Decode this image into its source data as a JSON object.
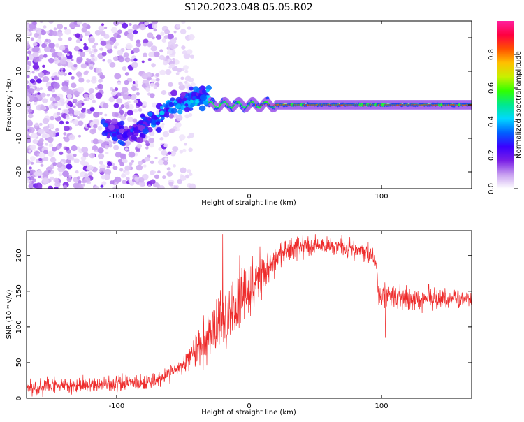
{
  "title": "S120.2023.048.05.05.R02",
  "chart_data": [
    {
      "type": "heatmap",
      "xlabel": "Height of straight line (km)",
      "ylabel": "Frequency (Hz)",
      "xlim": [
        -168,
        168
      ],
      "ylim": [
        -25,
        25
      ],
      "xticks": [
        -100,
        0,
        100
      ],
      "yticks": [
        -20,
        -10,
        0,
        10,
        20
      ],
      "colorbar": {
        "label": "Normalized spectral amplitude",
        "range": [
          0,
          1
        ],
        "ticks": [
          "0.0",
          "0.2",
          "0.4",
          "0.6",
          "0.8"
        ],
        "tick_values": [
          0,
          0.2,
          0.4,
          0.6,
          0.8
        ],
        "colormap": [
          "#ffffff",
          "#c8a0f0",
          "#7a1fe6",
          "#3a00ff",
          "#0060ff",
          "#00d8ff",
          "#00e890",
          "#30ff00",
          "#c8f000",
          "#ffc000",
          "#ff5000",
          "#ff0040",
          "#ff1f9f"
        ]
      },
      "features": {
        "noise_region_x": [
          -168,
          -50
        ],
        "diagonal_trend": [
          [
            -110,
            -6
          ],
          [
            -95,
            -9
          ],
          [
            -80,
            -6
          ],
          [
            -65,
            -3
          ],
          [
            -55,
            0
          ],
          [
            -45,
            1.5
          ],
          [
            -35,
            2.5
          ],
          [
            -30,
            3
          ]
        ],
        "steady_band": {
          "x": [
            -30,
            168
          ],
          "frequency": 0,
          "peak_amplitude": 0.9
        }
      }
    },
    {
      "type": "line",
      "xlabel": "Height of straight line (km)",
      "ylabel": "SNR (10 * v/v)",
      "xlim": [
        -168,
        168
      ],
      "ylim": [
        0,
        235
      ],
      "xticks": [
        -100,
        0,
        100
      ],
      "yticks": [
        0,
        50,
        100,
        150,
        200
      ],
      "color": "#ee2b2b",
      "series": [
        {
          "trend": [
            [
              -168,
              15
            ],
            [
              -150,
              17
            ],
            [
              -120,
              19
            ],
            [
              -90,
              20
            ],
            [
              -70,
              25
            ],
            [
              -55,
              38
            ],
            [
              -45,
              55
            ],
            [
              -35,
              80
            ],
            [
              -25,
              100
            ],
            [
              -15,
              120
            ],
            [
              -5,
              140
            ],
            [
              5,
              160
            ],
            [
              15,
              185
            ],
            [
              25,
              205
            ],
            [
              35,
              212
            ],
            [
              50,
              212
            ],
            [
              60,
              213
            ],
            [
              70,
              212
            ],
            [
              80,
              208
            ],
            [
              90,
              202
            ],
            [
              96,
              195
            ],
            [
              98,
              140
            ],
            [
              105,
              143
            ],
            [
              115,
              140
            ],
            [
              130,
              140
            ],
            [
              150,
              138
            ],
            [
              168,
              138
            ]
          ],
          "spread": [
            [
              -168,
              12
            ],
            [
              -50,
              12
            ],
            [
              -40,
              30
            ],
            [
              -25,
              45
            ],
            [
              -10,
              50
            ],
            [
              5,
              45
            ],
            [
              20,
              22
            ],
            [
              50,
              14
            ],
            [
              95,
              14
            ],
            [
              98,
              22
            ],
            [
              110,
              20
            ],
            [
              168,
              14
            ]
          ],
          "spikes": [
            [
              -20,
              230
            ],
            [
              -7,
              200
            ],
            [
              0,
              210
            ],
            [
              50,
              230
            ],
            [
              70,
              228
            ],
            [
              103,
              85
            ]
          ]
        }
      ]
    }
  ]
}
